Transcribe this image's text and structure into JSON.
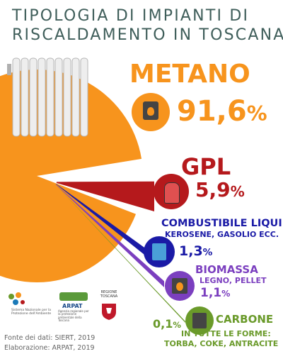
{
  "title_lines": [
    "TIPOLOGIA DI IMPIANTI DI",
    "RISCALDAMENTO IN TOSCANA"
  ],
  "colors": {
    "title": "#3f5e5a",
    "metano": "#f7941d",
    "gpl": "#b5191c",
    "liquido": "#1a1aa6",
    "biomassa": "#7b3fbf",
    "carbone": "#6a9a2a"
  },
  "icons": {
    "heater": "radiator-icon",
    "metano": "boiler-icon",
    "gpl": "gas-cylinder-icon",
    "liquido": "stove-icon",
    "biomassa": "fireplace-icon",
    "carbone": "coal-furnace-icon"
  },
  "labels": {
    "metano": {
      "name": "METANO",
      "value": "91,6",
      "unit": "%"
    },
    "gpl": {
      "name": "GPL",
      "value": "5,9",
      "unit": "%"
    },
    "liquido": {
      "name": "COMBUSTIBILE LIQUIDO",
      "sub": "KEROSENE, GASOLIO ECC.",
      "value": "1,3",
      "unit": "%"
    },
    "biomassa": {
      "name": "BIOMASSA",
      "sub": "LEGNO, PELLET",
      "value": "1,1",
      "unit": "%"
    },
    "carbone": {
      "value": "0,1",
      "unit": "%",
      "name": "CARBONE",
      "sub1": "IN TUTTE LE FORME:",
      "sub2": "TORBA, COKE, ANTRACITE"
    }
  },
  "logos": {
    "snpa_text": "Sistema Nazionale per la Protezione dell'Ambiente",
    "arpat_name": "ARPAT",
    "arpat_text": "Agenzia regionale per la protezione ambientale della Toscana",
    "regione": "REGIONE TOSCANA"
  },
  "source": [
    "Fonte dei dati: SIERT, 2019",
    "Elaborazione: ARPAT, 2019"
  ],
  "chart_data": {
    "type": "pie",
    "categories": [
      "Metano",
      "GPL",
      "Combustibile liquido",
      "Biomassa",
      "Carbone"
    ],
    "values": [
      91.6,
      5.9,
      1.3,
      1.1,
      0.1
    ],
    "unit": "%",
    "title": "TIPOLOGIA DI IMPIANTI DI RISCALDAMENTO IN TOSCANA"
  }
}
